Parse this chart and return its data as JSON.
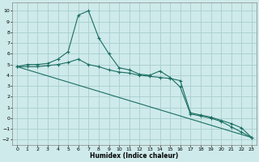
{
  "xlabel": "Humidex (Indice chaleur)",
  "xlim": [
    -0.5,
    23.5
  ],
  "ylim": [
    -2.5,
    10.8
  ],
  "xticks": [
    0,
    1,
    2,
    3,
    4,
    5,
    6,
    7,
    8,
    9,
    10,
    11,
    12,
    13,
    14,
    15,
    16,
    17,
    18,
    19,
    20,
    21,
    22,
    23
  ],
  "yticks": [
    -2,
    -1,
    0,
    1,
    2,
    3,
    4,
    5,
    6,
    7,
    8,
    9,
    10
  ],
  "bg_color": "#ceeaea",
  "grid_color": "#aacece",
  "line_color": "#1a6e62",
  "curve1_x": [
    0,
    1,
    2,
    3,
    4,
    5,
    6,
    7,
    8,
    9,
    10,
    11,
    12,
    13,
    14,
    15,
    16,
    17,
    18,
    19,
    20,
    21,
    22,
    23
  ],
  "curve1_y": [
    4.8,
    5.0,
    5.0,
    5.1,
    5.5,
    6.2,
    9.6,
    10.0,
    7.5,
    6.0,
    4.7,
    4.5,
    4.1,
    4.0,
    4.4,
    3.8,
    2.9,
    0.4,
    0.2,
    0.0,
    -0.3,
    -0.8,
    -1.3,
    -1.8
  ],
  "curve2_x": [
    0,
    23
  ],
  "curve2_y": [
    4.8,
    -1.8
  ],
  "curve3_x": [
    0,
    1,
    2,
    3,
    4,
    5,
    6,
    7,
    8,
    9,
    10,
    11,
    12,
    13,
    14,
    15,
    16,
    17,
    18,
    19,
    20,
    21,
    22,
    23
  ],
  "curve3_y": [
    4.8,
    4.8,
    4.8,
    4.9,
    5.0,
    5.2,
    5.5,
    5.0,
    4.8,
    4.5,
    4.3,
    4.2,
    4.0,
    3.9,
    3.8,
    3.7,
    3.5,
    0.5,
    0.3,
    0.1,
    -0.2,
    -0.5,
    -0.9,
    -1.8
  ]
}
